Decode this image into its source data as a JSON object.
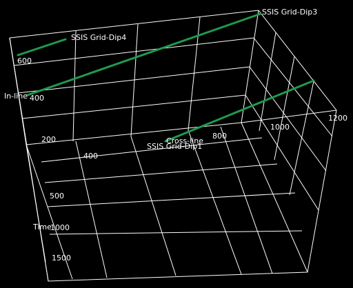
{
  "colors": {
    "background": "#000000",
    "grid": "#ffffff",
    "line": "#1f9a4f",
    "text": "#ffffff"
  },
  "axes": {
    "inline": {
      "label": "In-line",
      "ticks": [
        "200",
        "400",
        "600"
      ]
    },
    "crossline": {
      "label": "Cross-line",
      "ticks": [
        "400",
        "800",
        "1000",
        "1200"
      ]
    },
    "time": {
      "label": "Time",
      "ticks": [
        "500",
        "1000",
        "1500"
      ]
    }
  },
  "lines": [
    {
      "name": "SSIS Grid-Dip4"
    },
    {
      "name": "SSIS Grid-Dip3"
    },
    {
      "name": "SSIS Grid-Dip1"
    }
  ]
}
